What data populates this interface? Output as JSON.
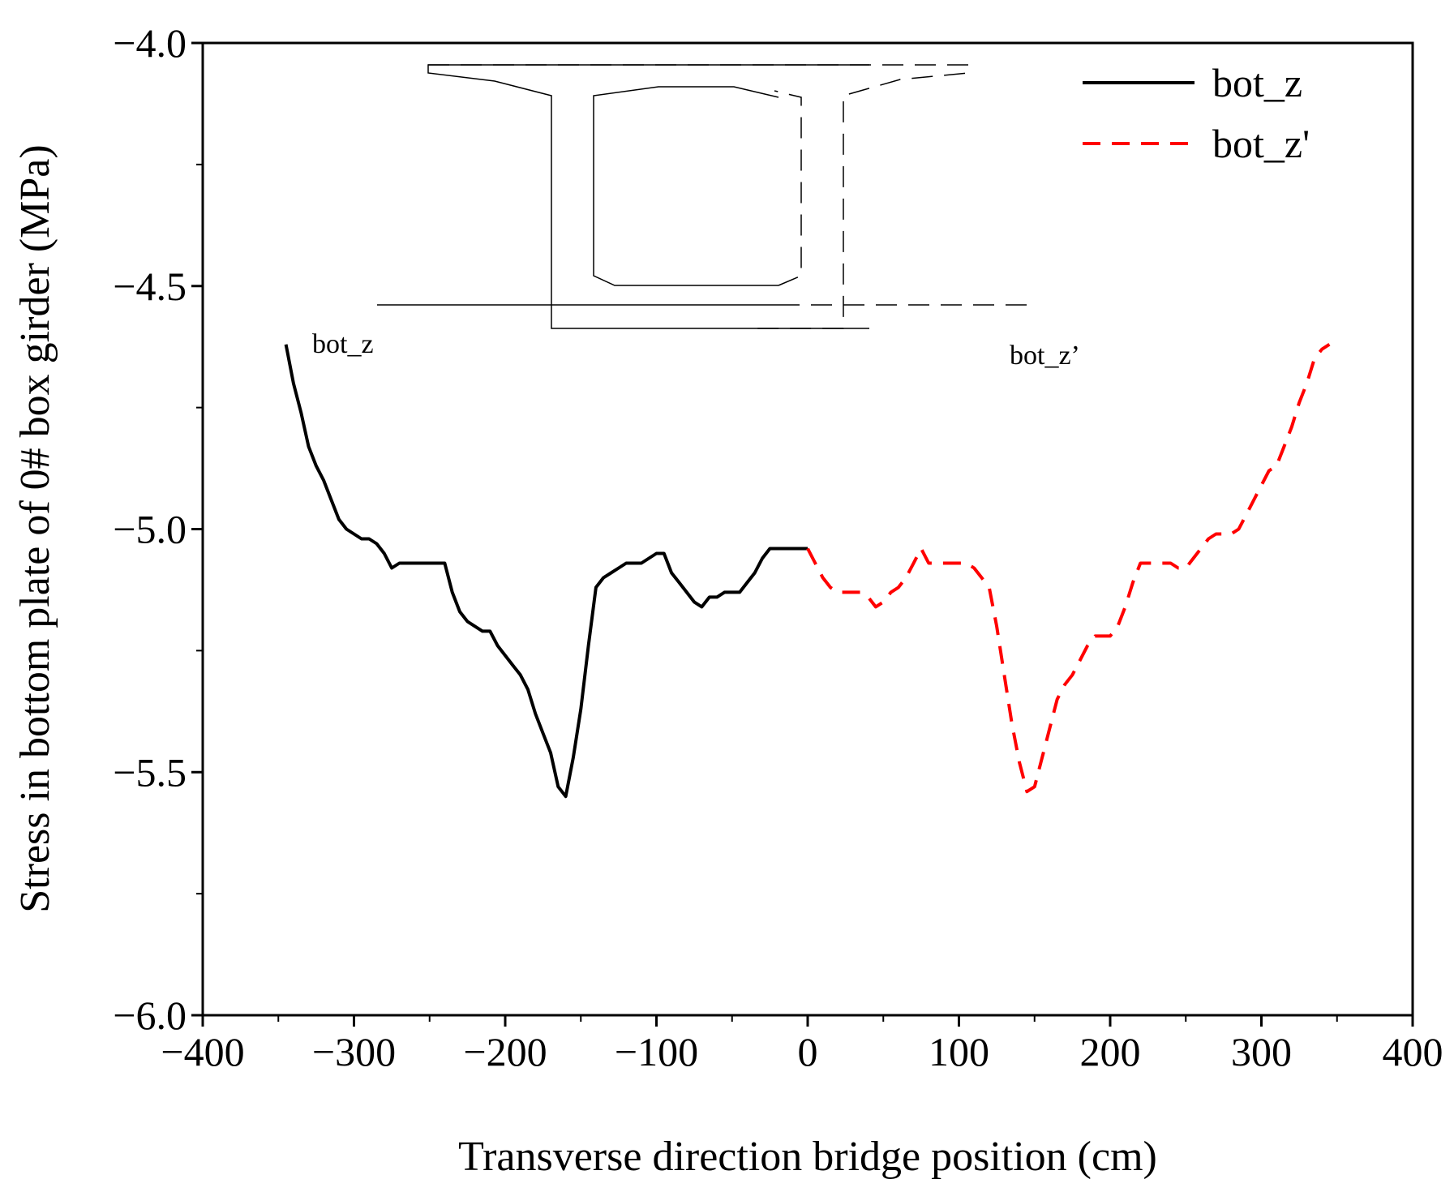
{
  "chart_data": {
    "type": "line",
    "title": "",
    "xlabel": "Transverse direction bridge position (cm)",
    "ylabel": "Stress in bottom plate of 0# box girder (MPa)",
    "xlim": [
      -400,
      400
    ],
    "ylim": [
      -6.0,
      -4.0
    ],
    "x_major_ticks": [
      -400,
      -300,
      -200,
      -100,
      0,
      100,
      200,
      300,
      400
    ],
    "x_tick_labels": [
      "−400",
      "−300",
      "−200",
      "−100",
      "0",
      "100",
      "200",
      "300",
      "400"
    ],
    "x_minor_ticks": [
      -350,
      -250,
      -150,
      -50,
      50,
      150,
      250,
      350
    ],
    "y_major_ticks": [
      -4.0,
      -4.5,
      -5.0,
      -5.5,
      -6.0
    ],
    "y_tick_labels": [
      "−4.0",
      "−4.5",
      "−5.0",
      "−5.5",
      "−6.0"
    ],
    "y_minor_ticks": [
      -4.25,
      -4.75,
      -5.25,
      -5.75
    ],
    "grid": false,
    "legend_position": "top-right",
    "series": [
      {
        "name": "bot_z",
        "color": "#000000",
        "style": "solid",
        "x": [
          -345,
          -340,
          -335,
          -330,
          -325,
          -320,
          -315,
          -310,
          -305,
          -300,
          -295,
          -290,
          -285,
          -280,
          -275,
          -270,
          -265,
          -260,
          -255,
          -250,
          -245,
          -240,
          -235,
          -230,
          -225,
          -220,
          -215,
          -210,
          -205,
          -200,
          -195,
          -190,
          -185,
          -180,
          -175,
          -170,
          -165,
          -160,
          -155,
          -150,
          -145,
          -140,
          -135,
          -130,
          -125,
          -120,
          -115,
          -110,
          -105,
          -100,
          -95,
          -90,
          -85,
          -80,
          -75,
          -70,
          -65,
          -60,
          -55,
          -50,
          -45,
          -40,
          -35,
          -30,
          -25,
          -20,
          -15,
          -10,
          -5,
          0
        ],
        "y": [
          -4.62,
          -4.7,
          -4.76,
          -4.83,
          -4.87,
          -4.9,
          -4.94,
          -4.98,
          -5.0,
          -5.01,
          -5.02,
          -5.02,
          -5.03,
          -5.05,
          -5.08,
          -5.07,
          -5.07,
          -5.07,
          -5.07,
          -5.07,
          -5.07,
          -5.07,
          -5.13,
          -5.17,
          -5.19,
          -5.2,
          -5.21,
          -5.21,
          -5.24,
          -5.26,
          -5.28,
          -5.3,
          -5.33,
          -5.38,
          -5.42,
          -5.46,
          -5.53,
          -5.55,
          -5.47,
          -5.37,
          -5.24,
          -5.12,
          -5.1,
          -5.09,
          -5.08,
          -5.07,
          -5.07,
          -5.07,
          -5.06,
          -5.05,
          -5.05,
          -5.09,
          -5.11,
          -5.13,
          -5.15,
          -5.16,
          -5.14,
          -5.14,
          -5.13,
          -5.13,
          -5.13,
          -5.11,
          -5.09,
          -5.06,
          -5.04,
          -5.04,
          -5.04,
          -5.04,
          -5.04,
          -5.04
        ]
      },
      {
        "name": "bot_z'",
        "color": "#ff0000",
        "style": "dashed",
        "x": [
          0,
          5,
          10,
          15,
          20,
          25,
          30,
          35,
          40,
          45,
          50,
          55,
          60,
          65,
          70,
          75,
          80,
          85,
          90,
          95,
          100,
          105,
          110,
          115,
          120,
          125,
          130,
          135,
          140,
          145,
          150,
          155,
          160,
          165,
          170,
          175,
          180,
          185,
          190,
          195,
          200,
          205,
          210,
          215,
          220,
          225,
          230,
          235,
          240,
          245,
          250,
          255,
          260,
          265,
          270,
          275,
          280,
          285,
          290,
          295,
          300,
          305,
          310,
          315,
          320,
          325,
          330,
          335,
          340,
          345
        ],
        "y": [
          -5.04,
          -5.07,
          -5.1,
          -5.12,
          -5.13,
          -5.13,
          -5.13,
          -5.13,
          -5.14,
          -5.16,
          -5.15,
          -5.13,
          -5.12,
          -5.1,
          -5.07,
          -5.04,
          -5.07,
          -5.07,
          -5.07,
          -5.07,
          -5.07,
          -5.07,
          -5.08,
          -5.1,
          -5.12,
          -5.2,
          -5.3,
          -5.4,
          -5.48,
          -5.54,
          -5.53,
          -5.47,
          -5.41,
          -5.35,
          -5.32,
          -5.3,
          -5.27,
          -5.24,
          -5.22,
          -5.22,
          -5.22,
          -5.2,
          -5.16,
          -5.11,
          -5.07,
          -5.07,
          -5.07,
          -5.07,
          -5.07,
          -5.08,
          -5.08,
          -5.06,
          -5.04,
          -5.02,
          -5.01,
          -5.01,
          -5.01,
          -5.0,
          -4.97,
          -4.94,
          -4.91,
          -4.88,
          -4.87,
          -4.83,
          -4.79,
          -4.74,
          -4.7,
          -4.65,
          -4.63,
          -4.62
        ]
      }
    ],
    "annotations": [
      "bot_z",
      "bot_z’"
    ]
  }
}
